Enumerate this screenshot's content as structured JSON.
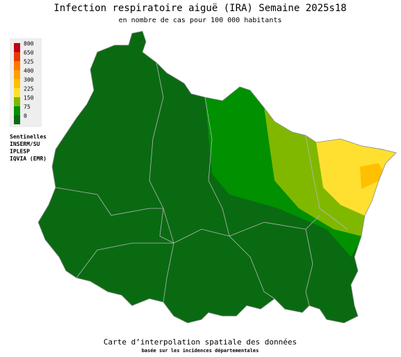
{
  "header": {
    "title": "Infection respiratoire aiguë (IRA) Semaine 2025s18",
    "subtitle": "en nombre de cas pour 100 000 habitants"
  },
  "legend": {
    "items": [
      {
        "label": "800",
        "color": "#c0001a"
      },
      {
        "label": "650",
        "color": "#e83a00"
      },
      {
        "label": "525",
        "color": "#ff7800"
      },
      {
        "label": "400",
        "color": "#ffa000"
      },
      {
        "label": "300",
        "color": "#ffc000"
      },
      {
        "label": "225",
        "color": "#ffe030"
      },
      {
        "label": "150",
        "color": "#80b800"
      },
      {
        "label": "75",
        "color": "#009000"
      },
      {
        "label": "0",
        "color": "#0a6a12"
      }
    ],
    "sources": [
      "Sentinelles",
      "INSERM/SU",
      "IPLESP",
      "IQVIA (EMR)"
    ]
  },
  "footer": {
    "line1": "Carte d’interpolation spatiale des données",
    "line2": "basée sur les incidences départementales"
  }
}
